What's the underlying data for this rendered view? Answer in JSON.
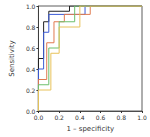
{
  "chart_data": {
    "type": "line",
    "x_label": "1 – specificity",
    "y_label": "Sensitivity",
    "xlim": [
      0,
      1
    ],
    "ylim": [
      0,
      1
    ],
    "xticks": [
      {
        "value": 0,
        "label": "0.0"
      },
      0.2,
      0.4,
      0.6,
      0.8,
      {
        "value": 1,
        "label": "1.0"
      }
    ],
    "yticks": [
      {
        "value": 0,
        "label": "0.0"
      },
      0.2,
      0.4,
      0.6,
      0.8,
      {
        "value": 1,
        "label": "1.0"
      }
    ],
    "grid": false,
    "series": [
      {
        "color": "#222222",
        "x": [
          0,
          0,
          0.05,
          0.05,
          0.1,
          0.1,
          0.3,
          0.3,
          1
        ],
        "values": [
          0,
          0.5,
          0.5,
          0.85,
          0.85,
          0.95,
          0.95,
          1,
          1
        ]
      },
      {
        "color": "#3b5bd6",
        "x": [
          0,
          0,
          0.05,
          0.05,
          0.1,
          0.1,
          0.45,
          0.45,
          1
        ],
        "values": [
          0,
          0.4,
          0.4,
          0.75,
          0.75,
          0.92,
          0.92,
          1,
          1
        ]
      },
      {
        "color": "#e07a50",
        "x": [
          0,
          0,
          0.08,
          0.08,
          0.15,
          0.15,
          0.25,
          0.25,
          0.5,
          0.5,
          1
        ],
        "values": [
          0,
          0.3,
          0.3,
          0.65,
          0.65,
          0.85,
          0.85,
          0.92,
          0.92,
          1,
          1
        ]
      },
      {
        "color": "#6cbf6c",
        "x": [
          0,
          0,
          0.1,
          0.1,
          0.2,
          0.2,
          0.35,
          0.35,
          1
        ],
        "values": [
          0,
          0.25,
          0.25,
          0.6,
          0.6,
          0.85,
          0.85,
          1,
          1
        ]
      },
      {
        "color": "#e8c25a",
        "x": [
          0,
          0,
          0.12,
          0.12,
          0.2,
          0.2,
          0.4,
          0.4,
          1
        ],
        "values": [
          0,
          0.2,
          0.2,
          0.55,
          0.55,
          0.8,
          0.8,
          1,
          1
        ]
      }
    ]
  }
}
